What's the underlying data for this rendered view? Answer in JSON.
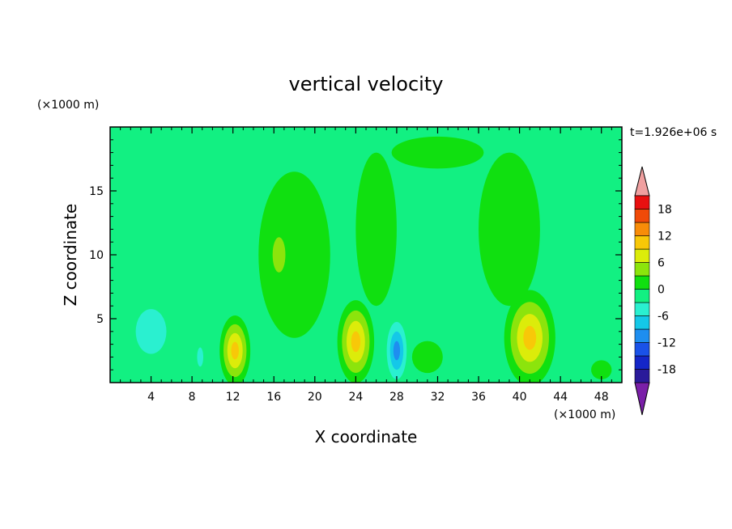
{
  "chart_data": {
    "type": "heatmap",
    "title": "vertical velocity",
    "xlabel": "X coordinate",
    "ylabel": "Z coordinate",
    "x_unit": "(×1000 m)",
    "y_unit": "(×1000 m)",
    "time_label": "t=1.926e+06 s",
    "xlim": [
      0,
      50
    ],
    "ylim": [
      0,
      20
    ],
    "x_ticks": [
      4,
      8,
      12,
      16,
      20,
      24,
      28,
      32,
      36,
      40,
      44,
      48
    ],
    "x_tick_labels": [
      "4",
      "8",
      "12",
      "16",
      "20",
      "24",
      "28",
      "32",
      "36",
      "40",
      "44",
      "48"
    ],
    "y_ticks": [
      5,
      10,
      15
    ],
    "y_tick_labels": [
      "5",
      "10",
      "15"
    ],
    "colorbar": {
      "levels": [
        -21,
        -18,
        -15,
        -12,
        -9,
        -6,
        -3,
        0,
        3,
        6,
        9,
        12,
        15,
        18,
        21
      ],
      "labeled_levels": [
        -18,
        -12,
        -6,
        0,
        6,
        12,
        18
      ],
      "labels": [
        "-18",
        "-12",
        "-6",
        "0",
        "6",
        "12",
        "18"
      ],
      "extend": "both",
      "colors": [
        "#7a1fa8",
        "#2a1a9a",
        "#1426c8",
        "#1a52e8",
        "#1e8ef0",
        "#14c8e8",
        "#2af0d0",
        "#12f082",
        "#10e010",
        "#8ce40c",
        "#dcec0a",
        "#f8c808",
        "#f88c08",
        "#f04a08",
        "#e81010",
        "#f0a0a0"
      ]
    },
    "features": [
      {
        "x": 12.2,
        "z": 2.5,
        "w": 3.0,
        "h": 5.5,
        "value": 12
      },
      {
        "x": 24.0,
        "z": 3.2,
        "w": 3.6,
        "h": 6.5,
        "value": 12
      },
      {
        "x": 41.0,
        "z": 3.5,
        "w": 5.0,
        "h": 7.5,
        "value": 12
      },
      {
        "x": 28.0,
        "z": 2.5,
        "w": 2.6,
        "h": 6.0,
        "value": -12
      },
      {
        "x": 4.0,
        "z": 4.0,
        "w": 6.0,
        "h": 7.0,
        "value": -6
      },
      {
        "x": 8.8,
        "z": 2.0,
        "w": 1.2,
        "h": 3.0,
        "value": -6
      },
      {
        "x": 18.0,
        "z": 10.0,
        "w": 7.0,
        "h": 13.0,
        "value": 3
      },
      {
        "x": 26.0,
        "z": 12.0,
        "w": 4.0,
        "h": 12.0,
        "value": 3
      },
      {
        "x": 32.0,
        "z": 18.0,
        "w": 9.0,
        "h": 2.5,
        "value": 3
      },
      {
        "x": 39.0,
        "z": 12.0,
        "w": 6.0,
        "h": 12.0,
        "value": 3
      },
      {
        "x": 16.5,
        "z": 10.0,
        "w": 2.5,
        "h": 5.5,
        "value": 6
      },
      {
        "x": 31.0,
        "z": 2.0,
        "w": 3.0,
        "h": 2.5,
        "value": 3
      },
      {
        "x": 48.0,
        "z": 1.0,
        "w": 2.0,
        "h": 1.5,
        "value": 3
      }
    ]
  }
}
